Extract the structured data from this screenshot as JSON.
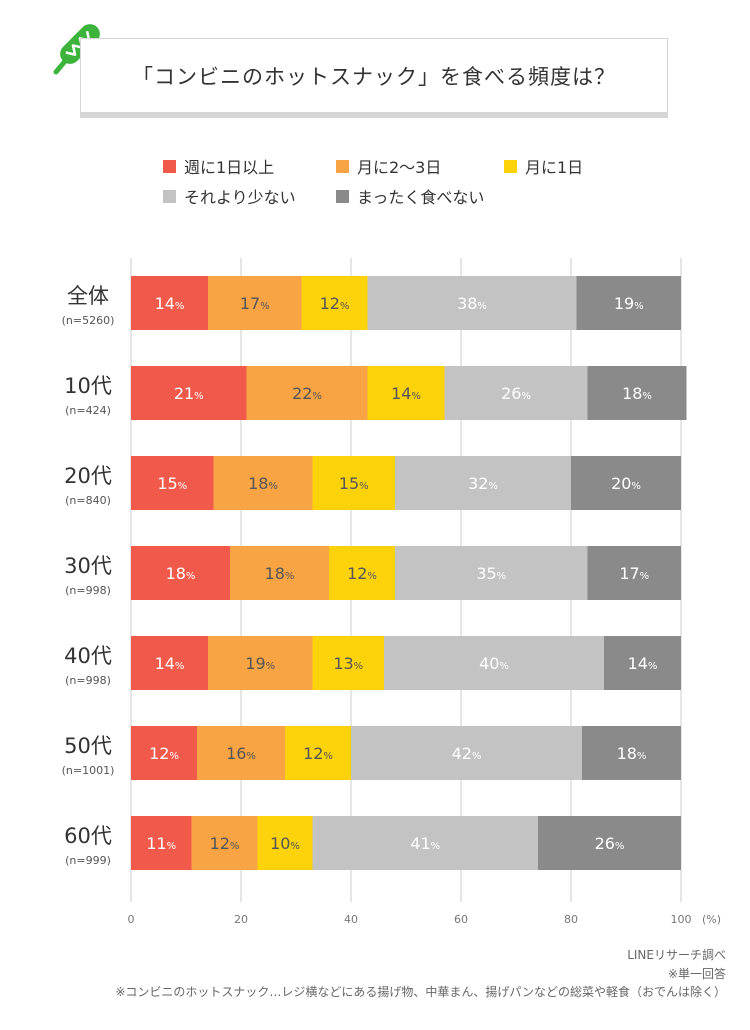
{
  "title": "「コンビニのホットスナック」を食べる頻度は？",
  "chart_data": {
    "type": "bar",
    "orientation": "horizontal",
    "stacked": true,
    "title": "「コンビニのホットスナック」を食べる頻度は？",
    "categories": [
      {
        "label": "全体",
        "sub": "(n=5260)"
      },
      {
        "label": "10代",
        "sub": "(n=424)"
      },
      {
        "label": "20代",
        "sub": "(n=840)"
      },
      {
        "label": "30代",
        "sub": "(n=998)"
      },
      {
        "label": "40代",
        "sub": "(n=998)"
      },
      {
        "label": "50代",
        "sub": "(n=1001)"
      },
      {
        "label": "60代",
        "sub": "(n=999)"
      }
    ],
    "series": [
      {
        "name": "週に1日以上",
        "color": "#f15a4a",
        "label_color": "#ffffff",
        "values": [
          14,
          21,
          15,
          18,
          14,
          12,
          11
        ]
      },
      {
        "name": "月に2〜3日",
        "color": "#f8a444",
        "label_color": "#555555",
        "values": [
          17,
          22,
          18,
          18,
          19,
          16,
          12
        ]
      },
      {
        "name": "月に1日",
        "color": "#fcd20b",
        "label_color": "#555555",
        "values": [
          12,
          14,
          15,
          12,
          13,
          12,
          10
        ]
      },
      {
        "name": "それより少ない",
        "color": "#c3c3c3",
        "label_color": "#ffffff",
        "values": [
          38,
          26,
          32,
          35,
          40,
          42,
          41
        ]
      },
      {
        "name": "まったく食べない",
        "color": "#8a8a8a",
        "label_color": "#ffffff",
        "values": [
          19,
          18,
          20,
          17,
          14,
          18,
          26
        ]
      }
    ],
    "xlim": [
      0,
      100
    ],
    "xticks": [
      0,
      20,
      40,
      60,
      80,
      100
    ],
    "xunit": "(%)",
    "value_suffix": "%",
    "legend_position": "top"
  },
  "notes": {
    "source": "LINEリサーチ調べ",
    "single": "※単一回答",
    "definition": "※コンビニのホットスナック…レジ横などにある揚げ物、中華まん、揚げパンなどの総菜や軽食（おでんは除く）"
  },
  "colors": {
    "axis": "#cccccc",
    "text": "#333333",
    "subtext": "#555555",
    "icon": "#3cb43c"
  }
}
